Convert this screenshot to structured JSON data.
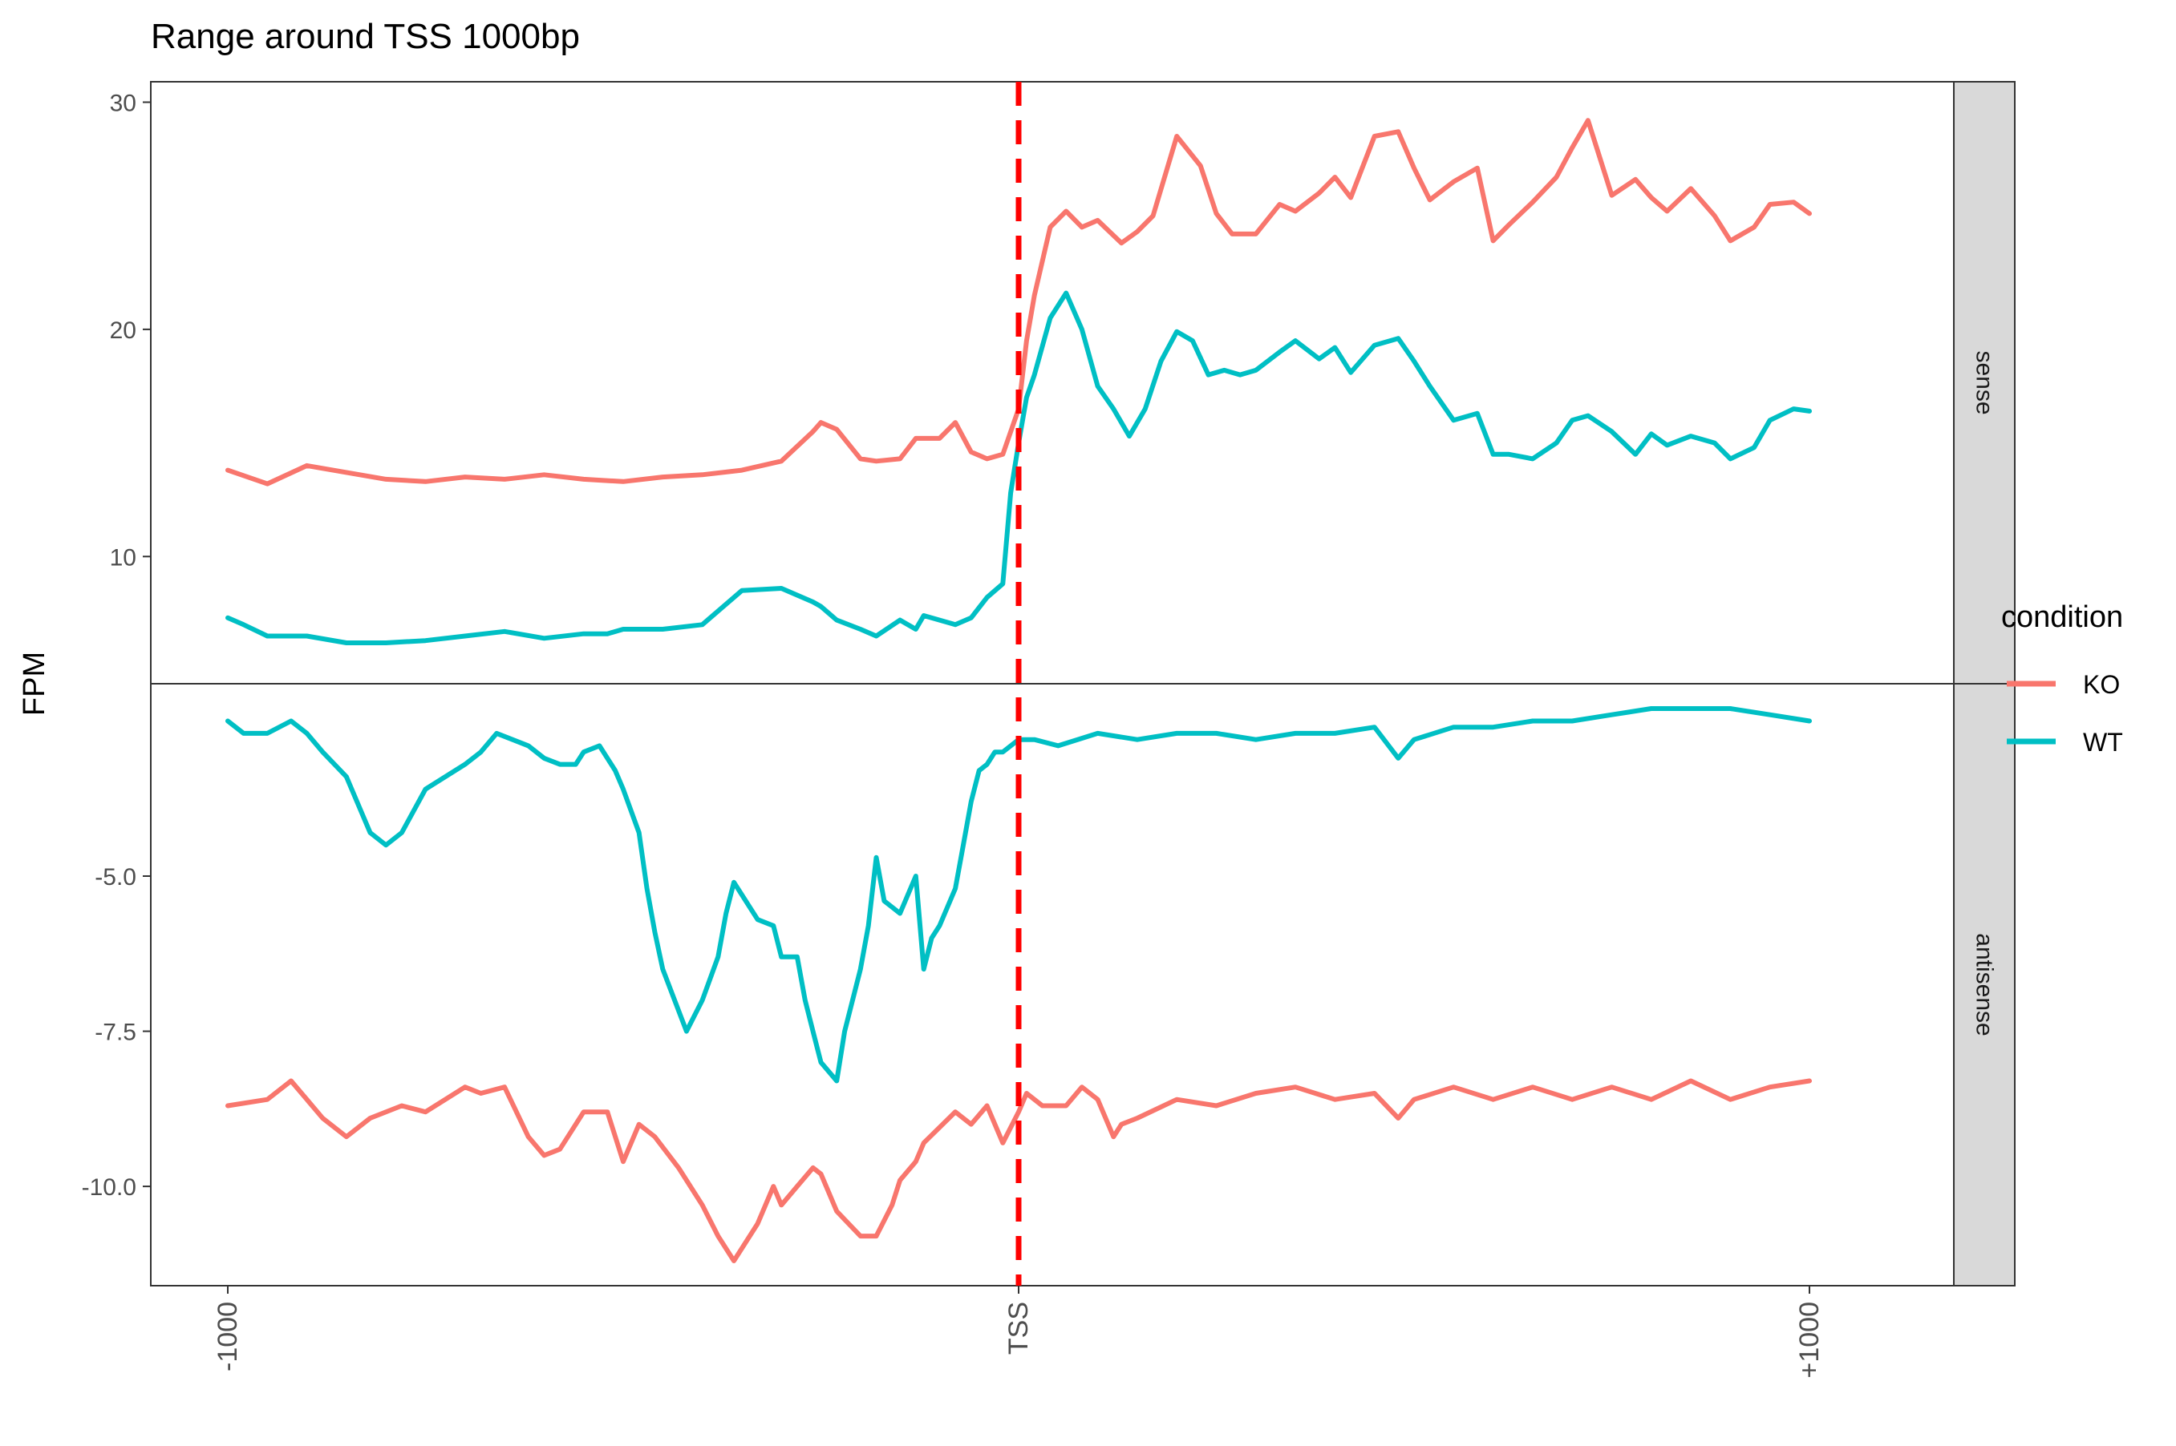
{
  "chart_data": {
    "type": "line",
    "title": "Range around TSS 1000bp",
    "xlabel": "",
    "ylabel": "FPM",
    "x_ticks": [
      {
        "value": -1000,
        "label": "-1000"
      },
      {
        "value": 0,
        "label": "TSS"
      },
      {
        "value": 1000,
        "label": "+1000"
      }
    ],
    "xlim": [
      -1000,
      1000
    ],
    "vline": {
      "x": 0,
      "color": "#ff0000",
      "style": "dashed"
    },
    "legend": {
      "title": "condition",
      "position": "right"
    },
    "colors": {
      "KO": "#f8766d",
      "WT": "#00bfc4"
    },
    "panels": [
      {
        "strip": "sense",
        "ylim": [
          4.4,
          30.9
        ],
        "y_ticks": [
          {
            "value": 10,
            "label": "10"
          },
          {
            "value": 20,
            "label": "20"
          },
          {
            "value": 30,
            "label": "30"
          }
        ],
        "series": [
          {
            "name": "KO",
            "x": [
              -1000,
              -950,
              -900,
              -850,
              -800,
              -750,
              -700,
              -650,
              -600,
              -550,
              -500,
              -450,
              -400,
              -350,
              -300,
              -260,
              -250,
              -230,
              -200,
              -180,
              -150,
              -130,
              -100,
              -80,
              -60,
              -40,
              -20,
              0,
              10,
              20,
              40,
              60,
              80,
              100,
              130,
              150,
              170,
              200,
              230,
              250,
              270,
              300,
              330,
              350,
              380,
              400,
              420,
              450,
              480,
              500,
              520,
              550,
              580,
              600,
              620,
              650,
              680,
              700,
              720,
              750,
              780,
              800,
              820,
              850,
              880,
              900,
              930,
              950,
              980,
              1000
            ],
            "y": [
              13.8,
              13.2,
              14.0,
              13.7,
              13.4,
              13.3,
              13.5,
              13.4,
              13.6,
              13.4,
              13.3,
              13.5,
              13.6,
              13.8,
              14.2,
              15.5,
              15.9,
              15.6,
              14.3,
              14.2,
              14.3,
              15.2,
              15.2,
              15.9,
              14.6,
              14.3,
              14.5,
              16.5,
              19.5,
              21.5,
              24.5,
              25.2,
              24.5,
              24.8,
              23.8,
              24.3,
              25.0,
              28.5,
              27.2,
              25.1,
              24.2,
              24.2,
              25.5,
              25.2,
              26.0,
              26.7,
              25.8,
              28.5,
              28.7,
              27.1,
              25.7,
              26.5,
              27.1,
              23.9,
              24.6,
              25.6,
              26.7,
              28.0,
              29.2,
              25.9,
              26.6,
              25.8,
              25.2,
              26.2,
              25.0,
              23.9,
              24.5,
              25.5,
              25.6,
              25.1
            ]
          },
          {
            "name": "WT",
            "x": [
              -1000,
              -980,
              -950,
              -900,
              -850,
              -800,
              -750,
              -700,
              -650,
              -600,
              -550,
              -520,
              -500,
              -450,
              -400,
              -350,
              -300,
              -260,
              -250,
              -230,
              -200,
              -180,
              -150,
              -130,
              -120,
              -100,
              -80,
              -60,
              -40,
              -20,
              -10,
              0,
              10,
              20,
              40,
              60,
              80,
              100,
              120,
              140,
              160,
              180,
              200,
              220,
              240,
              260,
              280,
              300,
              330,
              350,
              380,
              400,
              420,
              450,
              480,
              500,
              520,
              550,
              580,
              600,
              620,
              650,
              680,
              700,
              720,
              750,
              780,
              800,
              820,
              850,
              880,
              900,
              930,
              950,
              980,
              1000
            ],
            "y": [
              7.3,
              7.0,
              6.5,
              6.5,
              6.2,
              6.2,
              6.3,
              6.5,
              6.7,
              6.4,
              6.6,
              6.6,
              6.8,
              6.8,
              7.0,
              8.5,
              8.6,
              8.0,
              7.8,
              7.2,
              6.8,
              6.5,
              7.2,
              6.8,
              7.4,
              7.2,
              7.0,
              7.3,
              8.2,
              8.8,
              12.8,
              15.0,
              17.0,
              18.0,
              20.5,
              21.6,
              20.0,
              17.5,
              16.5,
              15.3,
              16.5,
              18.6,
              19.9,
              19.5,
              18.0,
              18.2,
              18.0,
              18.2,
              19.0,
              19.5,
              18.7,
              19.2,
              18.1,
              19.3,
              19.6,
              18.6,
              17.5,
              16.0,
              16.3,
              14.5,
              14.5,
              14.3,
              15.0,
              16.0,
              16.2,
              15.5,
              14.5,
              15.4,
              14.9,
              15.3,
              15.0,
              14.3,
              14.8,
              16.0,
              16.5,
              16.4
            ]
          }
        ]
      },
      {
        "strip": "antisense",
        "ylim": [
          -11.6,
          -1.9
        ],
        "y_ticks": [
          {
            "value": -5.0,
            "label": "-5.0"
          },
          {
            "value": -7.5,
            "label": "-7.5"
          },
          {
            "value": -10.0,
            "label": "-10.0"
          }
        ],
        "series": [
          {
            "name": "KO",
            "x": [
              -1000,
              -950,
              -920,
              -900,
              -880,
              -850,
              -820,
              -780,
              -750,
              -700,
              -680,
              -650,
              -620,
              -600,
              -580,
              -550,
              -520,
              -500,
              -480,
              -460,
              -430,
              -400,
              -380,
              -360,
              -350,
              -330,
              -310,
              -300,
              -280,
              -260,
              -250,
              -230,
              -200,
              -180,
              -160,
              -150,
              -130,
              -120,
              -80,
              -60,
              -40,
              -20,
              0,
              10,
              30,
              60,
              80,
              100,
              120,
              130,
              150,
              200,
              250,
              300,
              350,
              400,
              450,
              480,
              500,
              550,
              600,
              650,
              700,
              750,
              800,
              850,
              900,
              950,
              1000
            ],
            "y": [
              -8.7,
              -8.6,
              -8.3,
              -8.6,
              -8.9,
              -9.2,
              -8.9,
              -8.7,
              -8.8,
              -8.4,
              -8.5,
              -8.4,
              -9.2,
              -9.5,
              -9.4,
              -8.8,
              -8.8,
              -9.6,
              -9.0,
              -9.2,
              -9.7,
              -10.3,
              -10.8,
              -11.2,
              -11.0,
              -10.6,
              -10.0,
              -10.3,
              -10.0,
              -9.7,
              -9.8,
              -10.4,
              -10.8,
              -10.8,
              -10.3,
              -9.9,
              -9.6,
              -9.3,
              -8.8,
              -9.0,
              -8.7,
              -9.3,
              -8.8,
              -8.5,
              -8.7,
              -8.7,
              -8.4,
              -8.6,
              -9.2,
              -9.0,
              -8.9,
              -8.6,
              -8.7,
              -8.5,
              -8.4,
              -8.6,
              -8.5,
              -8.9,
              -8.6,
              -8.4,
              -8.6,
              -8.4,
              -8.6,
              -8.4,
              -8.6,
              -8.3,
              -8.6,
              -8.4,
              -8.3
            ]
          },
          {
            "name": "WT",
            "x": [
              -1000,
              -980,
              -950,
              -920,
              -900,
              -880,
              -850,
              -820,
              -800,
              -780,
              -750,
              -700,
              -680,
              -660,
              -640,
              -620,
              -600,
              -580,
              -560,
              -550,
              -530,
              -510,
              -500,
              -480,
              -470,
              -460,
              -450,
              -420,
              -400,
              -380,
              -370,
              -360,
              -350,
              -330,
              -310,
              -300,
              -280,
              -270,
              -260,
              -250,
              -230,
              -220,
              -200,
              -190,
              -180,
              -170,
              -160,
              -150,
              -130,
              -120,
              -110,
              -100,
              -80,
              -70,
              -60,
              -50,
              -40,
              -30,
              -20,
              0,
              20,
              50,
              100,
              150,
              200,
              250,
              300,
              350,
              400,
              450,
              480,
              500,
              550,
              600,
              650,
              700,
              750,
              800,
              850,
              900,
              950,
              1000
            ],
            "y": [
              -2.5,
              -2.7,
              -2.7,
              -2.5,
              -2.7,
              -3.0,
              -3.4,
              -4.3,
              -4.5,
              -4.3,
              -3.6,
              -3.2,
              -3.0,
              -2.7,
              -2.8,
              -2.9,
              -3.1,
              -3.2,
              -3.2,
              -3.0,
              -2.9,
              -3.3,
              -3.6,
              -4.3,
              -5.2,
              -5.9,
              -6.5,
              -7.5,
              -7.0,
              -6.3,
              -5.6,
              -5.1,
              -5.3,
              -5.7,
              -5.8,
              -6.3,
              -6.3,
              -7.0,
              -7.5,
              -8.0,
              -8.3,
              -7.5,
              -6.5,
              -5.8,
              -4.7,
              -5.4,
              -5.5,
              -5.6,
              -5.0,
              -6.5,
              -6.0,
              -5.8,
              -5.2,
              -4.5,
              -3.8,
              -3.3,
              -3.2,
              -3.0,
              -3.0,
              -2.8,
              -2.8,
              -2.9,
              -2.7,
              -2.8,
              -2.7,
              -2.7,
              -2.8,
              -2.7,
              -2.7,
              -2.6,
              -3.1,
              -2.8,
              -2.6,
              -2.6,
              -2.5,
              -2.5,
              -2.4,
              -2.3,
              -2.3,
              -2.3,
              -2.4,
              -2.5
            ]
          }
        ]
      }
    ]
  }
}
